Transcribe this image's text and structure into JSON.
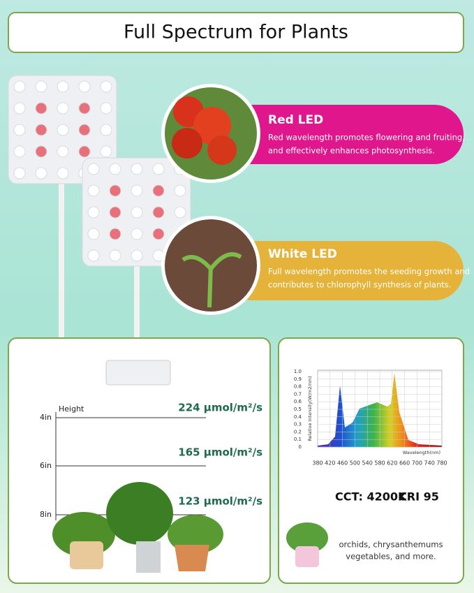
{
  "header": {
    "title": "Full Spectrum for Plants"
  },
  "features": [
    {
      "title": "Red LED",
      "description": [
        "Red wavelength promotes flowering and fruiting,",
        "and effectively enhances photosynthesis."
      ]
    },
    {
      "title": "White LED",
      "description": [
        "Full wavelength promotes the seeding growth and",
        "contributes to chlorophyll synthesis of plants."
      ]
    }
  ],
  "ppfd": {
    "axis_title": "Height",
    "levels": [
      {
        "height": "4in",
        "value": "224 μmol/m²/s"
      },
      {
        "height": "6in",
        "value": "165 μmol/m²/s"
      },
      {
        "height": "8in",
        "value": "123 μmol/m²/s"
      }
    ]
  },
  "spectrum": {
    "y_label": "Relative Intensity(W/m2/nm)",
    "x_label": "Wavelength(nm)",
    "yticks": [
      "1.0",
      "0.9",
      "0.8",
      "0.7",
      "0.6",
      "0.5",
      "0.4",
      "0.3",
      "0.2",
      "0.1",
      "0"
    ],
    "xticks": [
      380,
      420,
      460,
      500,
      540,
      580,
      620,
      660,
      700,
      740,
      780
    ],
    "cct": "CCT: 4200K",
    "cri": "CRI 95",
    "uses": [
      "orchids, chrysanthemums",
      "vegetables, and more."
    ]
  }
}
